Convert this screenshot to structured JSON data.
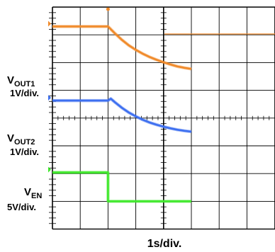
{
  "chart_data": {
    "type": "line",
    "xlabel": "1s/div.",
    "x_range": [
      0,
      5
    ],
    "trigger_x": 2,
    "trigger_color": "#f08a2a",
    "grid": true,
    "series": [
      {
        "key": "vout1",
        "label_main": "V",
        "label_sub": "OUT1",
        "scale": "1V/div.",
        "color": "#f08a2a",
        "x": [
          0,
          2,
          2.25,
          2.5,
          2.75,
          3.0,
          3.25,
          3.5,
          3.75,
          4.0,
          4.25,
          4.5,
          4.75,
          5.0
        ],
        "y": [
          7.3,
          7.3,
          7.05,
          6.82,
          6.62,
          6.46,
          6.32,
          6.2,
          6.1,
          6.01,
          5.93,
          5.86,
          5.81,
          5.77
        ]
      },
      {
        "key": "vout2",
        "label_main": "V",
        "label_sub": "OUT2",
        "scale": "1V/div.",
        "color": "#3d6ff0",
        "x": [
          0,
          2,
          2.1,
          2.25,
          2.5,
          2.75,
          3.0,
          3.25,
          3.5,
          3.75,
          4.0,
          4.25,
          4.5,
          4.75,
          5.0
        ],
        "y": [
          4.63,
          4.63,
          4.7,
          4.57,
          4.37,
          4.2,
          4.06,
          3.94,
          3.84,
          3.76,
          3.69,
          3.63,
          3.58,
          3.54,
          3.51
        ]
      },
      {
        "key": "ven",
        "label_main": "V",
        "label_sub": "EN",
        "scale": "5V/div.",
        "color": "#3ee82a",
        "x": [
          0,
          2,
          2,
          5
        ],
        "y": [
          2.04,
          2.04,
          1.0,
          1.0
        ]
      }
    ]
  }
}
